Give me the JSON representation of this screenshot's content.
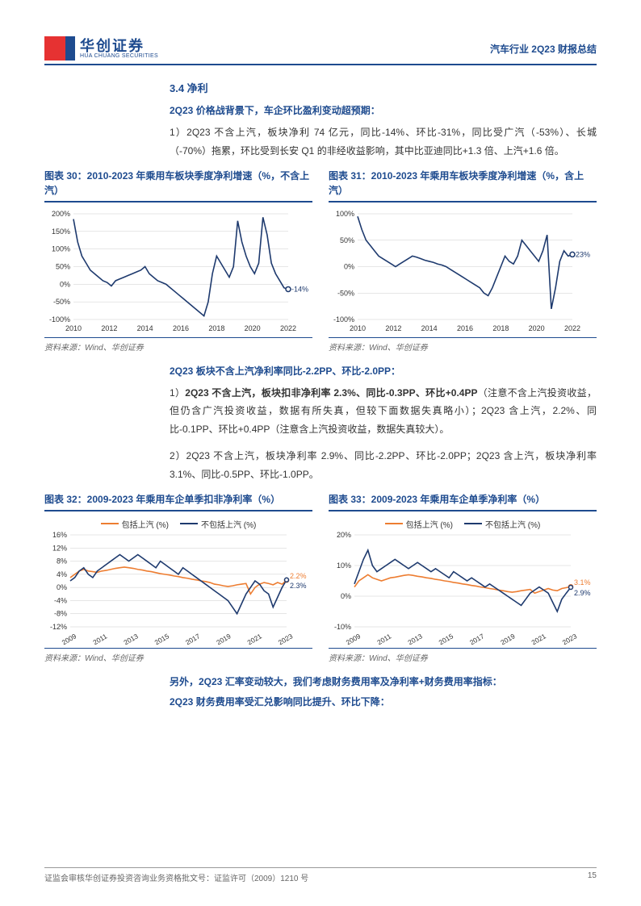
{
  "header": {
    "logo_cn": "华创证券",
    "logo_en": "HUA CHUANG SECURITIES",
    "right": "汽车行业 2Q23 财报总结"
  },
  "section": {
    "title": "3.4 净利",
    "sub1": "2Q23 价格战背景下，车企环比盈利变动超预期：",
    "para1": "1）2Q23 不含上汽，板块净利 74 亿元，同比-14%、环比-31%，同比受广汽（-53%）、长城（-70%）拖累，环比受到长安 Q1 的非经收益影响，其中比亚迪同比+1.3 倍、上汽+1.6 倍。",
    "sub2": "2Q23 板块不含上汽净利率同比-2.2PP、环比-2.0PP：",
    "para2a_prefix": "1）",
    "para2a_bold": "2Q23 不含上汽，板块扣非净利率 2.3%、同比-0.3PP、环比+0.4PP",
    "para2a_rest": "（注意不含上汽投资收益，但仍含广汽投资收益，数据有所失真，但较下面数据失真略小）；2Q23 含上汽，2.2%、同比-0.1PP、环比+0.4PP（注意含上汽投资收益，数据失真较大）。",
    "para2b": "2）2Q23 不含上汽，板块净利率 2.9%、同比-2.2PP、环比-2.0PP；2Q23 含上汽，板块净利率 3.1%、同比-0.5PP、环比-1.0PP。",
    "sub3": "另外，2Q23 汇率变动较大，我们考虑财务费用率及净利率+财务费用率指标：",
    "sub4": "2Q23 财务费用率受汇兑影响同比提升、环比下降："
  },
  "chart30": {
    "title": "图表 30：2010-2023 年乘用车板块季度净利增速（%，不含上汽）",
    "source": "资料来源：Wind、华创证券",
    "type": "line",
    "line_color": "#1e3a6e",
    "grid_color": "#cccccc",
    "text_color": "#333333",
    "axis_fontsize": 9,
    "label_fontsize": 9,
    "line_width": 1.6,
    "ylim": [
      -100,
      200
    ],
    "ytick_step": 50,
    "x_labels": [
      "2010",
      "2012",
      "2014",
      "2016",
      "2018",
      "2020",
      "2022"
    ],
    "end_label": "-14%",
    "end_marker_fill": "#ffffff",
    "data": [
      185,
      120,
      80,
      60,
      40,
      30,
      20,
      10,
      5,
      -5,
      10,
      15,
      20,
      25,
      30,
      35,
      40,
      50,
      30,
      20,
      10,
      5,
      0,
      -10,
      -20,
      -30,
      -40,
      -50,
      -60,
      -70,
      -80,
      -90,
      -50,
      30,
      80,
      60,
      40,
      20,
      50,
      180,
      120,
      80,
      50,
      30,
      60,
      190,
      140,
      60,
      30,
      10,
      -10,
      -14
    ]
  },
  "chart31": {
    "title": "图表 31：2010-2023 年乘用车板块季度净利增速（%，含上汽）",
    "source": "资料来源：Wind、华创证券",
    "type": "line",
    "line_color": "#1e3a6e",
    "grid_color": "#cccccc",
    "text_color": "#333333",
    "axis_fontsize": 9,
    "line_width": 1.6,
    "ylim": [
      -100,
      100
    ],
    "ytick_step": 50,
    "x_labels": [
      "2010",
      "2012",
      "2014",
      "2016",
      "2018",
      "2020",
      "2022"
    ],
    "end_label": "23%",
    "end_marker_fill": "#ffffff",
    "data": [
      95,
      70,
      50,
      40,
      30,
      20,
      15,
      10,
      5,
      0,
      5,
      10,
      15,
      20,
      18,
      15,
      12,
      10,
      8,
      5,
      3,
      0,
      -5,
      -10,
      -15,
      -20,
      -25,
      -30,
      -35,
      -40,
      -50,
      -55,
      -40,
      -20,
      0,
      20,
      10,
      5,
      20,
      50,
      40,
      30,
      20,
      10,
      30,
      60,
      -80,
      -40,
      10,
      30,
      20,
      23
    ]
  },
  "chart32": {
    "title": "图表 32：2009-2023 年乘用车企单季扣非净利率（%）",
    "source": "资料来源：Wind、华创证券",
    "type": "line",
    "colors": {
      "with_saic": "#ed7d31",
      "without_saic": "#1e3a6e"
    },
    "grid_color": "#cccccc",
    "text_color": "#333333",
    "line_width": 1.6,
    "ylim": [
      -12,
      16
    ],
    "ytick_step": 4,
    "x_labels": [
      "2009",
      "2011",
      "2013",
      "2015",
      "2017",
      "2019",
      "2021",
      "2023"
    ],
    "legend": {
      "with": "包括上汽 (%)",
      "without": "不包括上汽 (%)"
    },
    "end_labels": {
      "orange": "2.2%",
      "navy": "2.3%"
    },
    "series": {
      "with_saic": [
        3,
        4,
        5,
        5.5,
        5,
        4.8,
        4.6,
        5,
        5.2,
        5.5,
        5.8,
        6,
        6.2,
        6,
        5.8,
        5.5,
        5.3,
        5,
        4.8,
        4.5,
        4.2,
        4,
        3.8,
        3.5,
        3.3,
        3,
        2.8,
        2.5,
        2.3,
        2,
        1.8,
        1.5,
        1,
        0.8,
        0.5,
        0.3,
        0.5,
        0.8,
        1,
        1.2,
        -2,
        0,
        1,
        1.5,
        1.2,
        0.8,
        1.5,
        1,
        2.2
      ],
      "without_saic": [
        2,
        3,
        5,
        6,
        4,
        3,
        5,
        6,
        7,
        8,
        9,
        10,
        9,
        8,
        9,
        10,
        9,
        8,
        7,
        6,
        8,
        7,
        6,
        5,
        4,
        6,
        5,
        4,
        3,
        2,
        1,
        0,
        -1,
        -2,
        -3,
        -4,
        -6,
        -8,
        -5,
        -2,
        0,
        2,
        1,
        -1,
        -2,
        -6,
        -3,
        0,
        2.3
      ]
    }
  },
  "chart33": {
    "title": "图表 33：2009-2023 年乘用车企单季净利率（%）",
    "source": "资料来源：Wind、华创证券",
    "type": "line",
    "colors": {
      "with_saic": "#ed7d31",
      "without_saic": "#1e3a6e"
    },
    "grid_color": "#cccccc",
    "text_color": "#333333",
    "line_width": 1.6,
    "ylim": [
      -10,
      20
    ],
    "ytick_step": 10,
    "x_labels": [
      "2009",
      "2011",
      "2013",
      "2015",
      "2017",
      "2019",
      "2021",
      "2023"
    ],
    "legend": {
      "with": "包括上汽 (%)",
      "without": "不包括上汽 (%)"
    },
    "end_labels": {
      "orange": "3.1%",
      "navy": "2.9%"
    },
    "series": {
      "with_saic": [
        3,
        5,
        6,
        7,
        6,
        5.5,
        5,
        5.5,
        6,
        6.2,
        6.5,
        6.8,
        7,
        6.8,
        6.5,
        6.3,
        6,
        5.8,
        5.5,
        5.3,
        5,
        4.8,
        4.5,
        4.3,
        4,
        3.8,
        3.5,
        3.3,
        3,
        2.8,
        2.5,
        2.3,
        2,
        1.8,
        1.5,
        1.3,
        1.5,
        1.8,
        2,
        2.2,
        1,
        1.5,
        2,
        2.5,
        2,
        1.8,
        2.5,
        2.8,
        3.1
      ],
      "without_saic": [
        4,
        8,
        12,
        15,
        10,
        8,
        9,
        10,
        11,
        12,
        11,
        10,
        9,
        10,
        11,
        10,
        9,
        8,
        9,
        8,
        7,
        6,
        8,
        7,
        6,
        5,
        6,
        5,
        4,
        3,
        4,
        3,
        2,
        1,
        0,
        -1,
        -2,
        -3,
        -1,
        1,
        2,
        3,
        2,
        1,
        -2,
        -5,
        -1,
        1,
        2.9
      ]
    }
  },
  "footer": {
    "left": "证监会审核华创证券投资咨询业务资格批文号：证监许可（2009）1210 号",
    "page": "15"
  }
}
